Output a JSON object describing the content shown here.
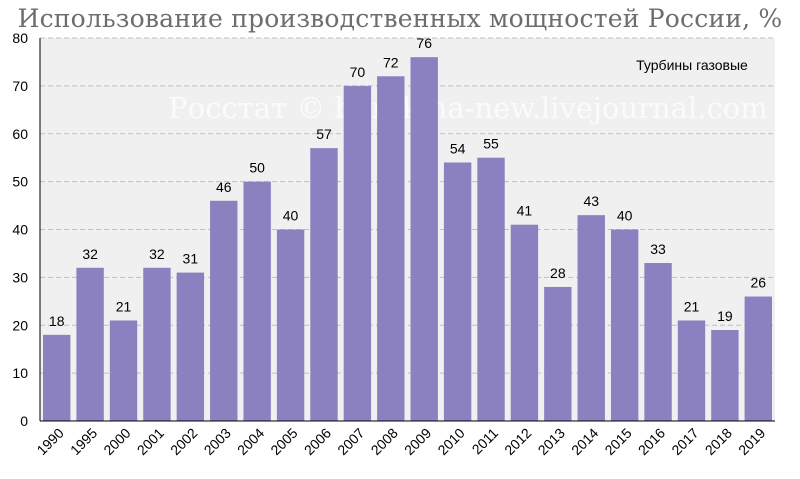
{
  "chart_data": {
    "type": "bar",
    "title": "Использование производственных мощностей России, %",
    "series_label": "Турбины газовые",
    "watermark": "Росстат © burckina-new.livejournal.com",
    "categories": [
      "1990",
      "1995",
      "2000",
      "2001",
      "2002",
      "2003",
      "2004",
      "2005",
      "2006",
      "2007",
      "2008",
      "2009",
      "2010",
      "2011",
      "2012",
      "2013",
      "2014",
      "2015",
      "2016",
      "2017",
      "2018",
      "2019"
    ],
    "values": [
      18,
      32,
      21,
      32,
      31,
      46,
      50,
      40,
      57,
      70,
      72,
      76,
      54,
      55,
      41,
      28,
      43,
      40,
      33,
      21,
      19,
      26
    ],
    "ylim": [
      0,
      80
    ],
    "yticks": [
      0,
      10,
      20,
      30,
      40,
      50,
      60,
      70,
      80
    ],
    "grid": "horizontal dashed",
    "colors": {
      "bar": "#8b81c0",
      "plot_bg": "#f0f0f0",
      "grid": "#bfbfbf"
    }
  }
}
